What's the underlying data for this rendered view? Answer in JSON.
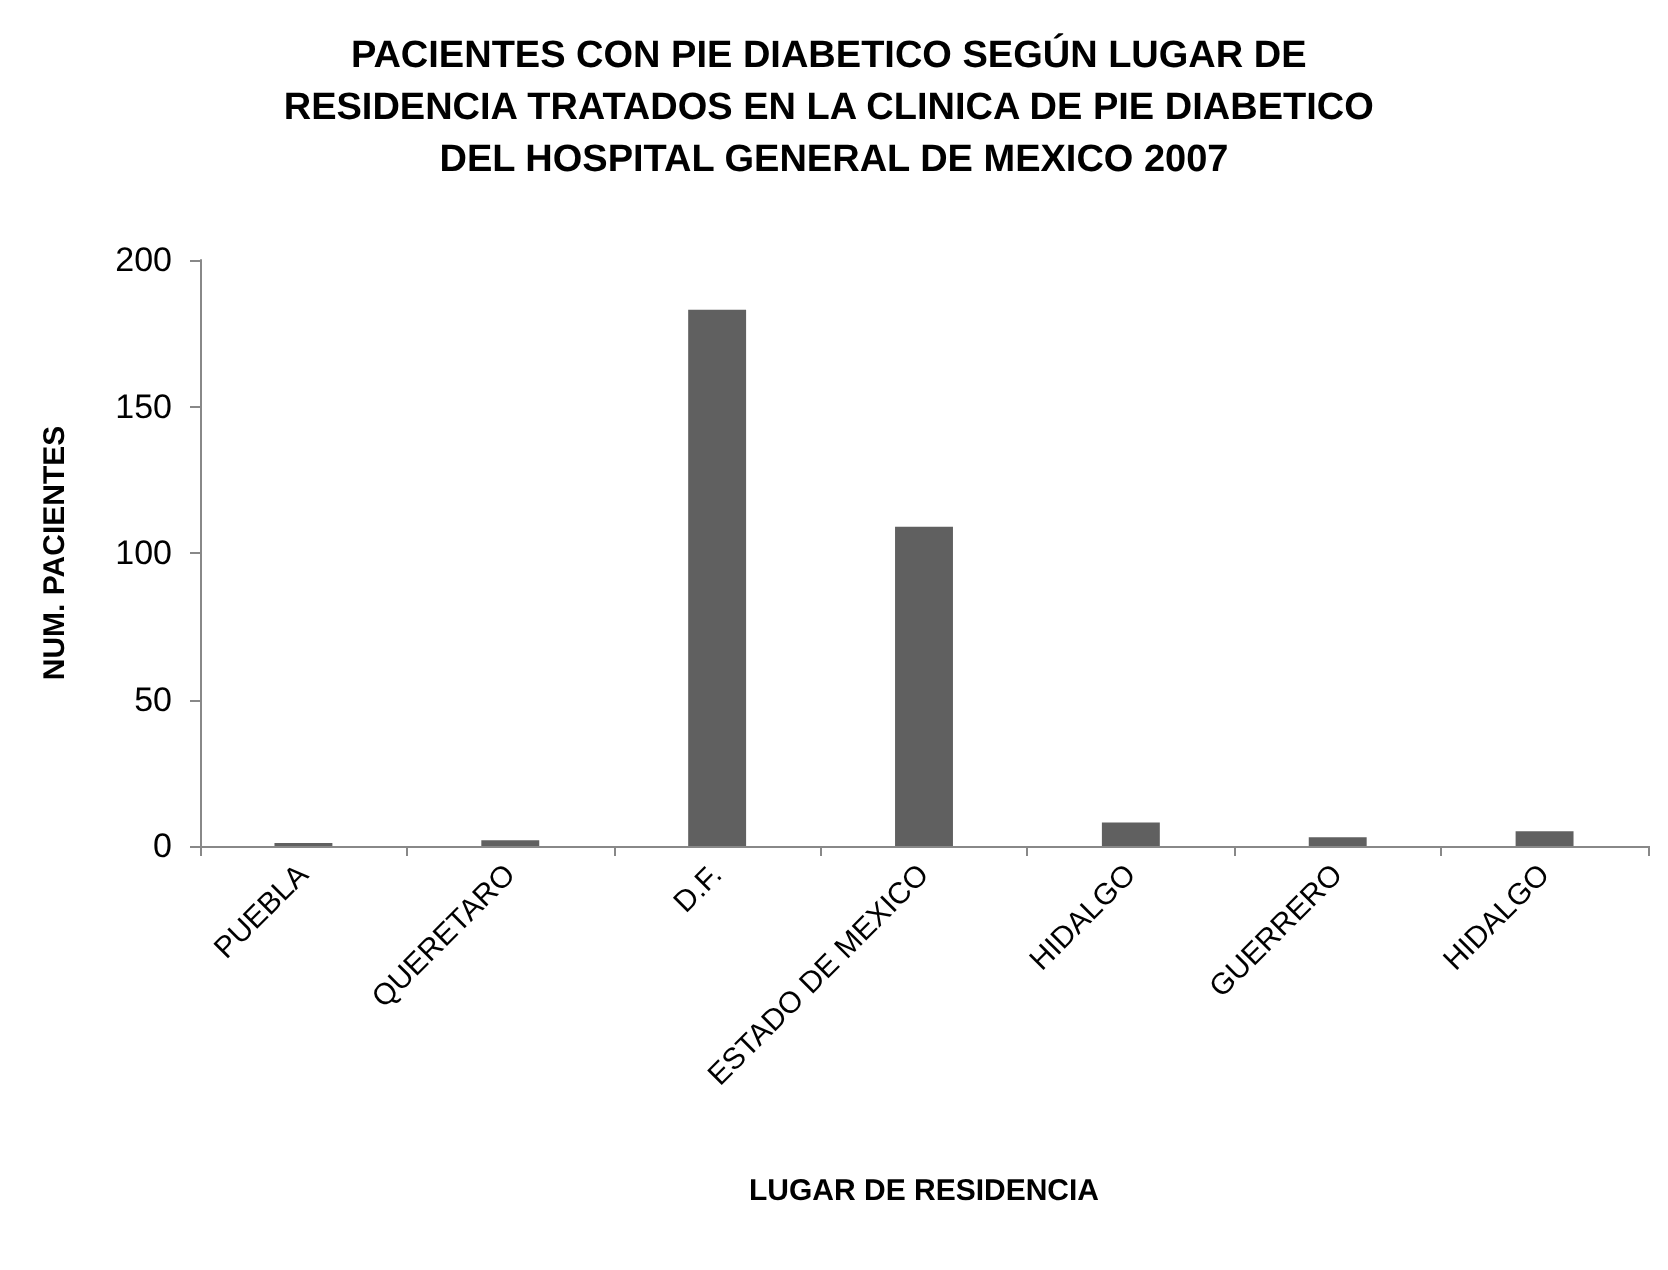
{
  "chart_data": {
    "type": "bar",
    "title": "PACIENTES CON PIE DIABETICO SEGÚN LUGAR DE RESIDENCIA TRATADOS EN LA CLINICA DE PIE DIABETICO DEL HOSPITAL GENERAL DE MEXICO 2007",
    "xlabel": "LUGAR DE RESIDENCIA",
    "ylabel": "NUM. PACIENTES",
    "categories": [
      "PUEBLA",
      "QUERETARO",
      "D.F.",
      "ESTADO DE MEXICO",
      "HIDALGO",
      "GUERRERO",
      "HIDALGO"
    ],
    "values": [
      1,
      2,
      183,
      109,
      8,
      3,
      5
    ],
    "color": "#606060",
    "ylim": [
      0,
      200
    ],
    "yticks": [
      0,
      50,
      100,
      150,
      200
    ],
    "grid": false
  }
}
